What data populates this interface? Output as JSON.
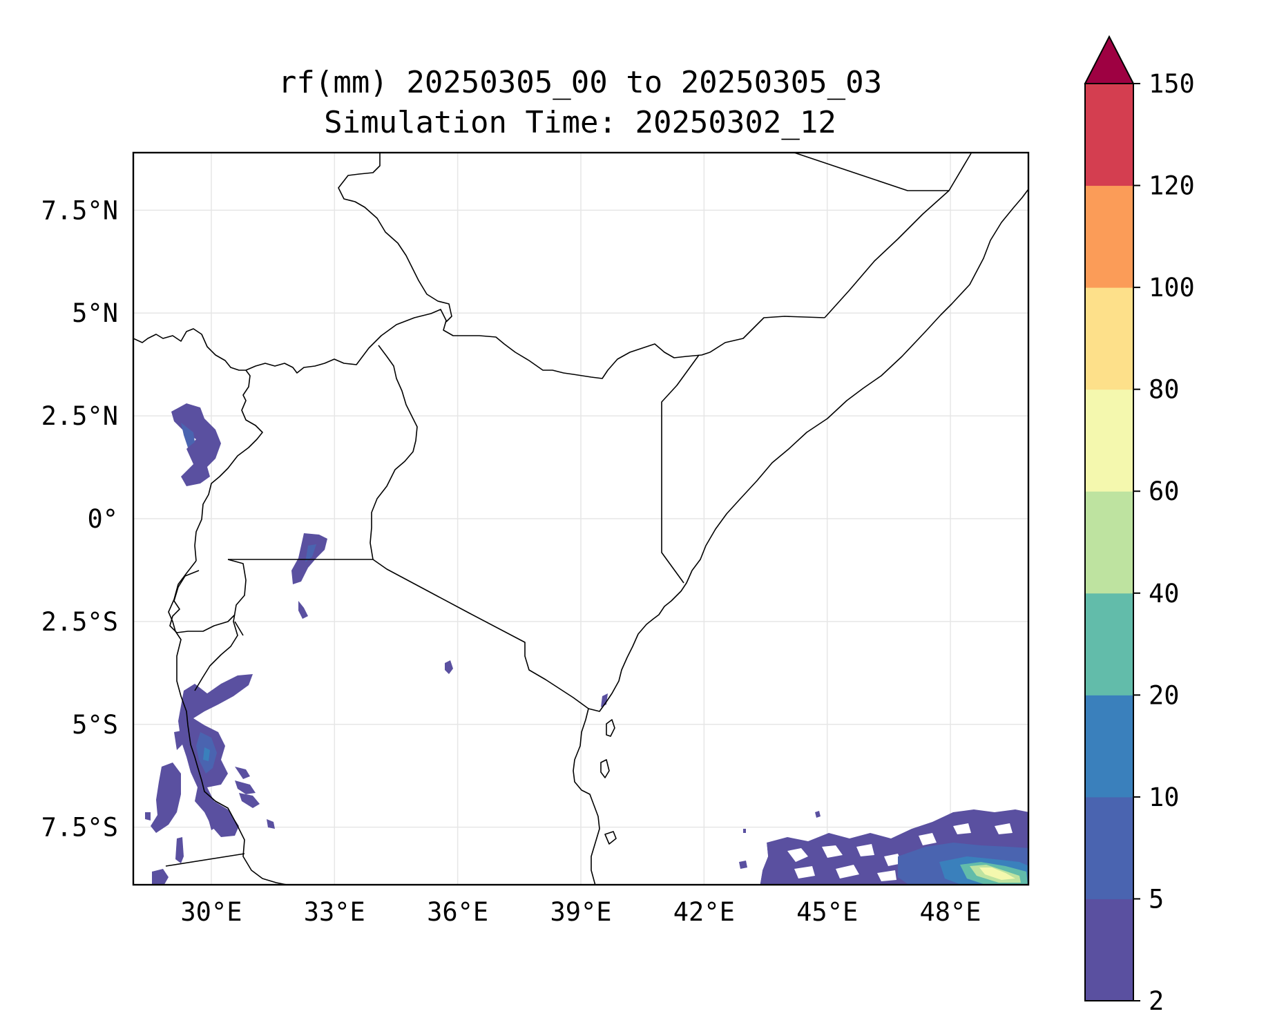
{
  "title_line1": "rf(mm) 20250305_00 to 20250305_03",
  "title_line2": "Simulation Time: 20250302_12",
  "map": {
    "lon_range": [
      28.1,
      49.9
    ],
    "lat_range": [
      -8.9,
      8.9
    ],
    "x_ticks": [
      {
        "value": 30,
        "label": "30°E"
      },
      {
        "value": 33,
        "label": "33°E"
      },
      {
        "value": 36,
        "label": "36°E"
      },
      {
        "value": 39,
        "label": "39°E"
      },
      {
        "value": 42,
        "label": "42°E"
      },
      {
        "value": 45,
        "label": "45°E"
      },
      {
        "value": 48,
        "label": "48°E"
      }
    ],
    "y_ticks": [
      {
        "value": 7.5,
        "label": "7.5°N"
      },
      {
        "value": 5,
        "label": "5°N"
      },
      {
        "value": 2.5,
        "label": "2.5°N"
      },
      {
        "value": 0,
        "label": "0°"
      },
      {
        "value": -2.5,
        "label": "2.5°S"
      },
      {
        "value": -5,
        "label": "5°S"
      },
      {
        "value": -7.5,
        "label": "7.5°S"
      }
    ],
    "grid": true
  },
  "colorbar": {
    "levels": [
      2,
      5,
      10,
      20,
      40,
      60,
      80,
      100,
      120,
      150
    ],
    "labels": [
      "2",
      "5",
      "10",
      "20",
      "40",
      "60",
      "80",
      "100",
      "120",
      "150"
    ],
    "colors": [
      "#5a50a0",
      "#4a64b0",
      "#3a80bc",
      "#62bcaa",
      "#bee3a0",
      "#f4f8ae",
      "#fde08a",
      "#fb9c58",
      "#d43e50"
    ],
    "extend_color": "#9e0142",
    "extend": "max"
  },
  "colors": {
    "rain_light": "#5a50a0",
    "rain_mid": "#4a64b0",
    "rain_heavy": "#62bcaa",
    "rain_peak": "#f4f8ae"
  }
}
